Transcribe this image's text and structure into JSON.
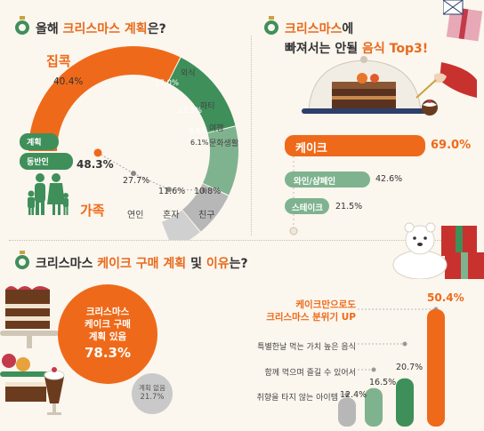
{
  "colors": {
    "orange": "#ee6a1a",
    "green": "#3f8f5a",
    "light_green": "#7fb38f",
    "gray": "#b7b7b7",
    "light_gray": "#d0d0d0",
    "bg": "#fbf6ee"
  },
  "s1": {
    "title_a": "올해 ",
    "title_hl": "크리스마스 계획",
    "title_b": "은?",
    "arc_labels": {
      "main": "집콕",
      "main_value": "40.4%",
      "out": "외식",
      "out_value": "17.0%",
      "party": "파티",
      "party_value": "13.3%",
      "trip": "여행",
      "trip_value": "8.6%",
      "culture": "문화생활",
      "culture_value": "6.1%"
    },
    "pill_plan": "계획",
    "pill_companion": "동반인",
    "companion_main_label": "가족",
    "companion_main_value": "48.3%",
    "companions": [
      {
        "label": "연인",
        "value": "27.7%"
      },
      {
        "label": "혼자",
        "value": "11.6%"
      },
      {
        "label": "친구",
        "value": "10.8%"
      }
    ]
  },
  "s2": {
    "title_line1_hl": "크리스마스",
    "title_line1_b": "에",
    "title_line2_a": "빠져서는 안될 ",
    "title_line2_hl": "음식 Top3!",
    "bars": [
      {
        "label": "케이크",
        "value": "69.0%"
      },
      {
        "label": "와인/샴페인",
        "value": "42.6%"
      },
      {
        "label": "스테이크",
        "value": "21.5%"
      }
    ]
  },
  "s3": {
    "title_a": "크리스마스 ",
    "title_hl1": "케이크 구매 계획",
    "title_b": " 및 ",
    "title_hl2": "이유",
    "title_c": "는?",
    "circle_line1": "크리스마스",
    "circle_line2": "케이크 구매",
    "circle_line3": "계획 있음",
    "circle_value": "78.3%",
    "no_plan_label": "계획 없음",
    "no_plan_value": "21.7%",
    "reasons": [
      {
        "label": "케이크만으로도",
        "label2": "크리스마스 분위기 UP",
        "value": "50.4%"
      },
      {
        "label": "특별한날 먹는 가치 높은 음식",
        "value": "20.7%"
      },
      {
        "label": "함께 먹으며 즐길 수 있어서",
        "value": "16.5%"
      },
      {
        "label": "취향을 타지 않는 아이템",
        "value": "12.4%"
      }
    ]
  },
  "chart_data": [
    {
      "type": "pie",
      "title": "올해 크리스마스 계획은?",
      "categories": [
        "집콕",
        "외식",
        "파티",
        "여행",
        "문화생활"
      ],
      "values": [
        40.4,
        17.0,
        13.3,
        8.6,
        6.1
      ]
    },
    {
      "type": "line",
      "categories": [
        "가족",
        "연인",
        "혼자",
        "친구"
      ],
      "values": [
        48.3,
        27.7,
        11.6,
        10.8
      ]
    },
    {
      "type": "bar",
      "title": "크리스마스에 빠져서는 안될 음식 Top3!",
      "categories": [
        "케이크",
        "와인/샴페인",
        "스테이크"
      ],
      "values": [
        69.0,
        42.6,
        21.5
      ]
    },
    {
      "type": "pie",
      "title": "크리스마스 케이크 구매 계획 및 이유는?",
      "categories": [
        "계획 있음",
        "계획 없음"
      ],
      "values": [
        78.3,
        21.7
      ]
    },
    {
      "type": "bar",
      "categories": [
        "취향을 타지 않는 아이템",
        "함께 먹으며 즐길 수 있어서",
        "특별한날 먹는 가치 높은 음식",
        "케이크만으로도 크리스마스 분위기 UP"
      ],
      "values": [
        12.4,
        16.5,
        20.7,
        50.4
      ]
    }
  ]
}
